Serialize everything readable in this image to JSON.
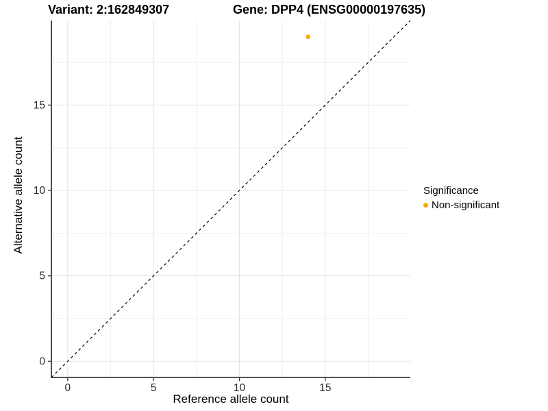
{
  "header": {
    "variant_title": "Variant: 2:162849307",
    "gene_title": "Gene: DPP4 (ENSG00000197635)"
  },
  "legend": {
    "title": "Significance",
    "items": [
      {
        "label": "Non-significant",
        "color": "#FFA500",
        "marker": "point-icon"
      }
    ]
  },
  "chart_data": {
    "type": "scatter",
    "title": "Variant: 2:162849307    Gene: DPP4 (ENSG00000197635)",
    "xlabel": "Reference allele count",
    "ylabel": "Alternative allele count",
    "xlim": [
      -0.95,
      19.95
    ],
    "ylim": [
      -0.95,
      19.95
    ],
    "x_ticks": [
      0,
      5,
      10,
      15
    ],
    "y_ticks": [
      0,
      5,
      10,
      15
    ],
    "x_minor_ticks": [
      2.5,
      7.5,
      12.5,
      17.5
    ],
    "y_minor_ticks": [
      2.5,
      7.5,
      12.5,
      17.5
    ],
    "grid": true,
    "legend_position": "right",
    "series": [
      {
        "name": "Non-significant",
        "color": "#FFA500",
        "points": [
          {
            "x": 14,
            "y": 19
          }
        ]
      }
    ],
    "reference_line": {
      "type": "identity",
      "slope": 1,
      "intercept": 0,
      "style": "dashed",
      "color": "#000000"
    }
  },
  "colors": {
    "background": "#FFFFFF",
    "grid_major": "#E4E4E4",
    "grid_minor": "#EFEFEF",
    "axis_line": "#3C3C3C",
    "tick_text": "#2B2B2B",
    "point": "#FFA500"
  }
}
